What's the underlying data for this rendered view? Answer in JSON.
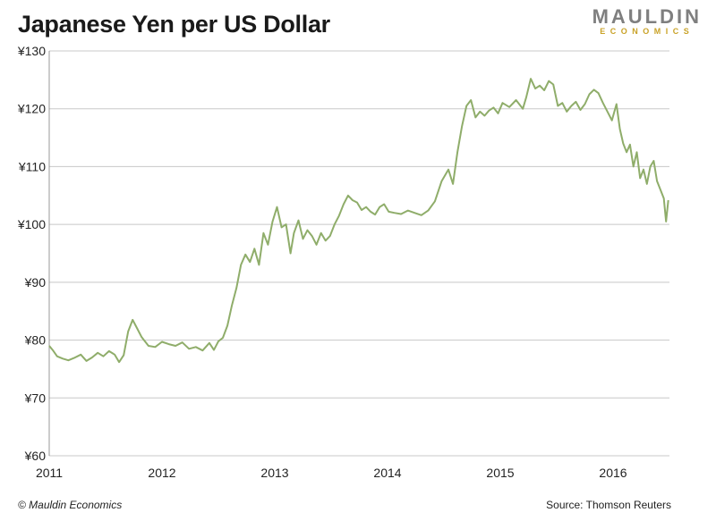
{
  "header": {
    "title": "Japanese Yen per US Dollar"
  },
  "logo": {
    "top": "MAULDIN",
    "bottom": "ECONOMICS"
  },
  "footer": {
    "left": "© Mauldin Economics",
    "right": "Source: Thomson Reuters"
  },
  "colors": {
    "line": "#8fad6a",
    "grid": "#c8c8c8",
    "logo_gray": "#7f7f7f",
    "logo_gold": "#c9a227"
  },
  "chart_data": {
    "type": "line",
    "title": "Japanese Yen per US Dollar",
    "xlabel": "",
    "ylabel": "",
    "xlim": [
      2011.0,
      2016.5
    ],
    "ylim": [
      60,
      130
    ],
    "grid": "horizontal",
    "y_ticks": [
      60,
      70,
      80,
      90,
      100,
      110,
      120,
      130
    ],
    "y_tick_labels": [
      "¥60",
      "¥70",
      "¥80",
      "¥90",
      "¥100",
      "¥110",
      "¥120",
      "¥130"
    ],
    "x_ticks": [
      2011,
      2012,
      2013,
      2014,
      2015,
      2016
    ],
    "x_tick_labels": [
      "2011",
      "2012",
      "2013",
      "2014",
      "2015",
      "2016"
    ],
    "series": [
      {
        "x": [
          2011.0,
          2011.03,
          2011.07,
          2011.12,
          2011.17,
          2011.22,
          2011.28,
          2011.33,
          2011.38,
          2011.43,
          2011.48,
          2011.53,
          2011.58,
          2011.62,
          2011.66,
          2011.7,
          2011.74,
          2011.78,
          2011.82,
          2011.88,
          2011.94,
          2012.0,
          2012.06,
          2012.12,
          2012.18,
          2012.24,
          2012.3,
          2012.36,
          2012.42,
          2012.46,
          2012.5,
          2012.54,
          2012.58,
          2012.62,
          2012.66,
          2012.7,
          2012.74,
          2012.78,
          2012.82,
          2012.86,
          2012.9,
          2012.94,
          2012.98,
          2013.02,
          2013.06,
          2013.1,
          2013.14,
          2013.17,
          2013.21,
          2013.25,
          2013.29,
          2013.33,
          2013.37,
          2013.41,
          2013.45,
          2013.49,
          2013.53,
          2013.57,
          2013.61,
          2013.65,
          2013.69,
          2013.73,
          2013.77,
          2013.81,
          2013.85,
          2013.89,
          2013.93,
          2013.97,
          2014.01,
          2014.06,
          2014.12,
          2014.18,
          2014.24,
          2014.3,
          2014.36,
          2014.42,
          2014.48,
          2014.54,
          2014.58,
          2014.62,
          2014.66,
          2014.7,
          2014.74,
          2014.78,
          2014.82,
          2014.86,
          2014.9,
          2014.94,
          2014.98,
          2015.02,
          2015.08,
          2015.14,
          2015.2,
          2015.23,
          2015.27,
          2015.31,
          2015.35,
          2015.39,
          2015.43,
          2015.47,
          2015.51,
          2015.55,
          2015.59,
          2015.63,
          2015.67,
          2015.71,
          2015.75,
          2015.79,
          2015.83,
          2015.87,
          2015.91,
          2015.95,
          2015.99,
          2016.03,
          2016.06,
          2016.09,
          2016.12,
          2016.15,
          2016.18,
          2016.21,
          2016.24,
          2016.27,
          2016.3,
          2016.33,
          2016.36,
          2016.39,
          2016.42,
          2016.45,
          2016.47,
          2016.49
        ],
        "y": [
          79.0,
          78.3,
          77.2,
          76.8,
          76.5,
          76.9,
          77.5,
          76.4,
          77.0,
          77.8,
          77.2,
          78.1,
          77.5,
          76.2,
          77.4,
          81.5,
          83.5,
          82.0,
          80.5,
          79.0,
          78.8,
          79.7,
          79.3,
          79.0,
          79.6,
          78.5,
          78.8,
          78.2,
          79.5,
          78.3,
          79.8,
          80.4,
          82.5,
          86.0,
          89.0,
          93.0,
          94.8,
          93.5,
          95.8,
          93.0,
          98.5,
          96.5,
          100.5,
          103.0,
          99.5,
          100.0,
          95.0,
          98.5,
          100.7,
          97.5,
          99.0,
          98.0,
          96.5,
          98.5,
          97.2,
          98.0,
          100.0,
          101.5,
          103.5,
          105.0,
          104.2,
          103.8,
          102.5,
          103.0,
          102.2,
          101.7,
          103.0,
          103.5,
          102.2,
          102.0,
          101.8,
          102.4,
          102.0,
          101.6,
          102.4,
          104.0,
          107.5,
          109.5,
          107.0,
          112.5,
          117.0,
          120.5,
          121.5,
          118.5,
          119.5,
          118.8,
          119.7,
          120.2,
          119.2,
          121.0,
          120.3,
          121.5,
          120.0,
          122.0,
          125.2,
          123.5,
          124.0,
          123.2,
          124.8,
          124.2,
          120.5,
          121.0,
          119.5,
          120.5,
          121.2,
          119.8,
          120.8,
          122.5,
          123.3,
          122.7,
          121.0,
          119.5,
          118.0,
          120.8,
          116.5,
          114.0,
          112.5,
          113.8,
          110.0,
          112.5,
          108.0,
          109.5,
          107.0,
          110.0,
          111.0,
          107.5,
          106.0,
          104.5,
          100.5,
          104.2
        ]
      }
    ]
  }
}
